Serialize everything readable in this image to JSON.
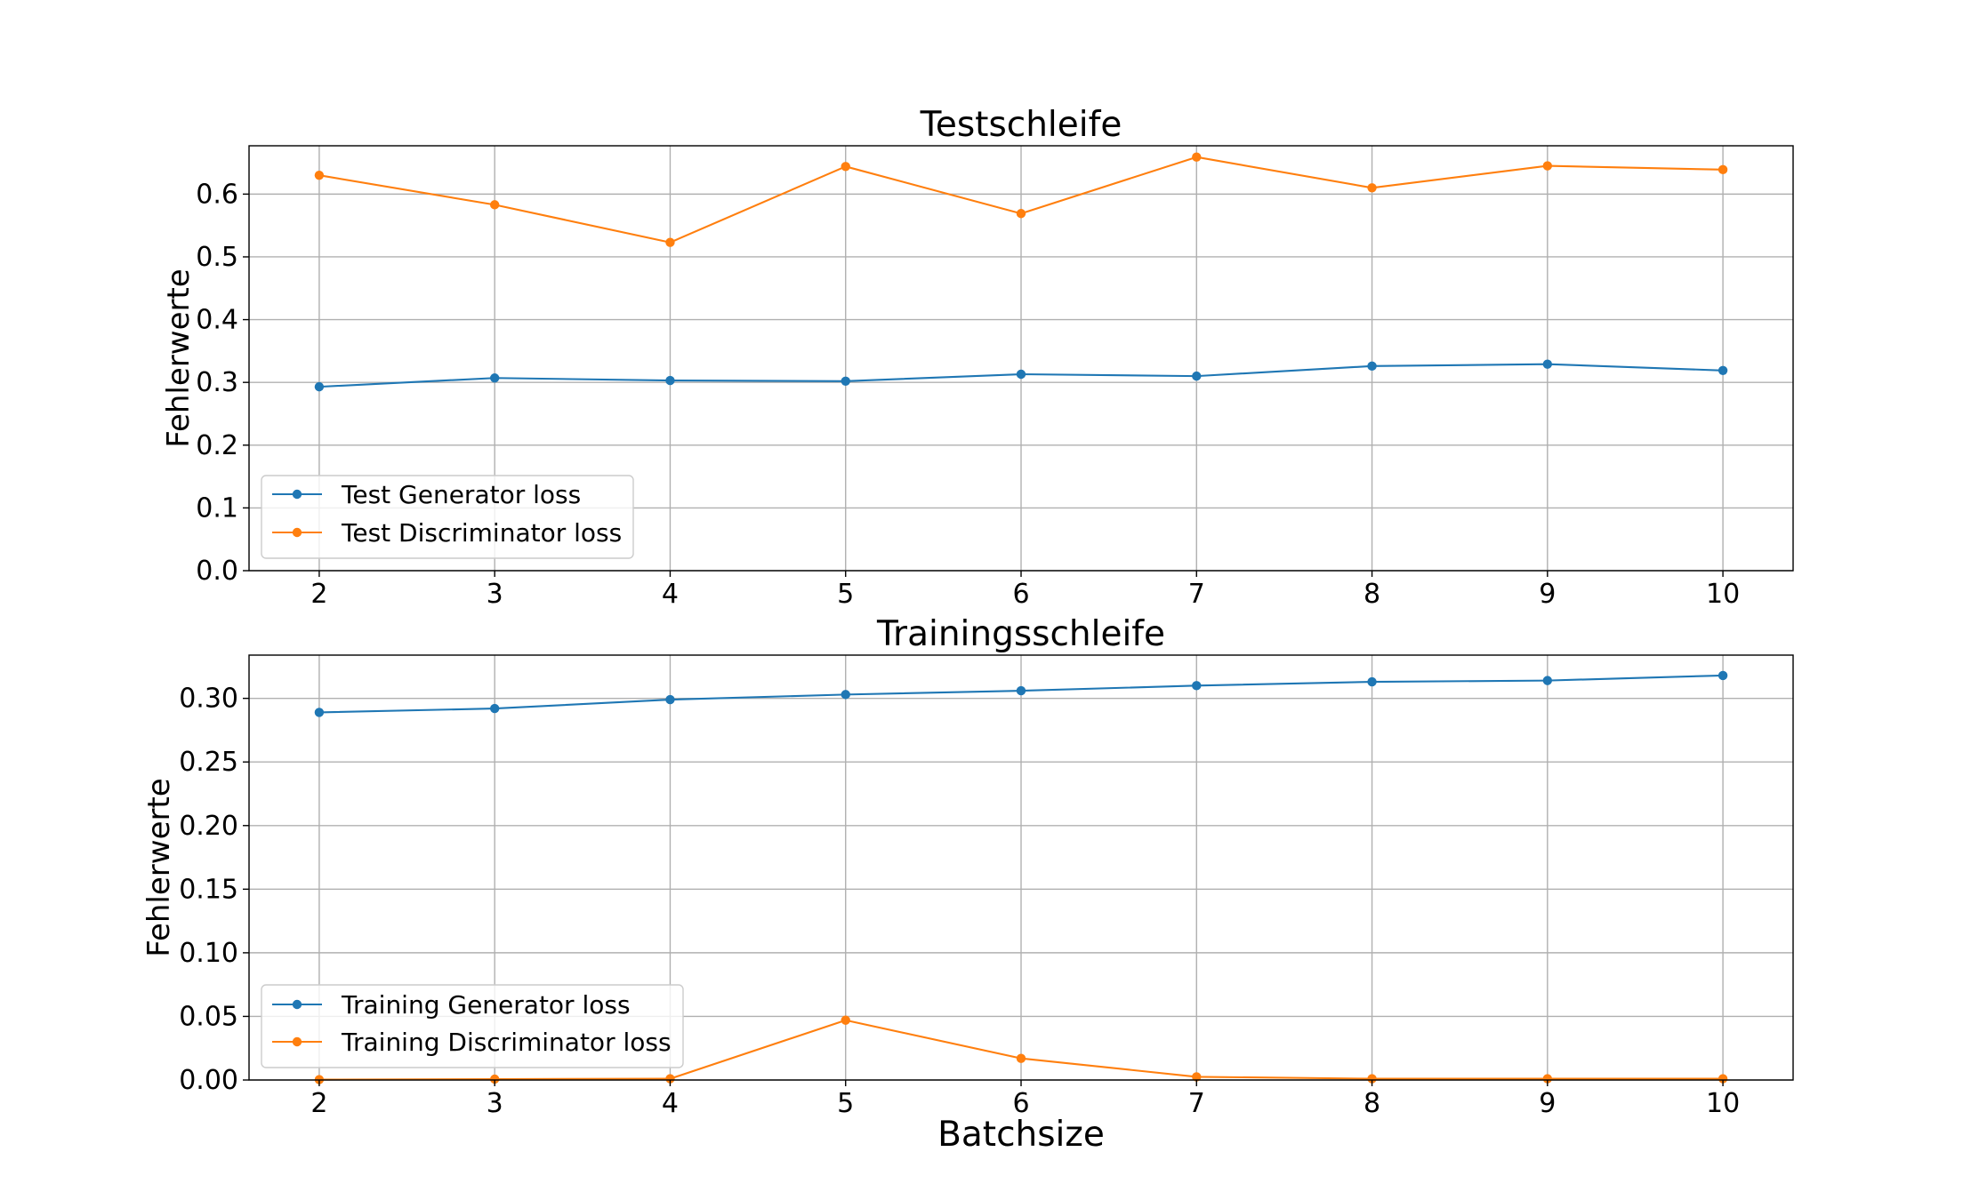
{
  "chart_data": [
    {
      "type": "line",
      "title": "Testschleife",
      "xlabel": "",
      "ylabel": "Fehlerwerte",
      "x": [
        2,
        3,
        4,
        5,
        6,
        7,
        8,
        9,
        10
      ],
      "xticks": [
        "2",
        "3",
        "4",
        "5",
        "6",
        "7",
        "8",
        "9",
        "10"
      ],
      "xlim": [
        1.6,
        10.4
      ],
      "ylim": [
        0,
        0.677
      ],
      "yticks": [
        "0.0",
        "0.1",
        "0.2",
        "0.3",
        "0.4",
        "0.5",
        "0.6"
      ],
      "ytick_values": [
        0,
        0.1,
        0.2,
        0.3,
        0.4,
        0.5,
        0.6
      ],
      "grid": true,
      "legend_position": "lower-left",
      "series": [
        {
          "name": "Test Generator loss",
          "color": "#1f77b4",
          "marker": "circle",
          "values": [
            0.293,
            0.307,
            0.303,
            0.302,
            0.313,
            0.31,
            0.326,
            0.329,
            0.319
          ]
        },
        {
          "name": "Test Discriminator loss",
          "color": "#ff7f0e",
          "marker": "circle",
          "values": [
            0.63,
            0.583,
            0.523,
            0.644,
            0.569,
            0.659,
            0.61,
            0.645,
            0.639
          ]
        }
      ]
    },
    {
      "type": "line",
      "title": "Trainingsschleife",
      "xlabel": "Batchsize",
      "ylabel": "Fehlerwerte",
      "x": [
        2,
        3,
        4,
        5,
        6,
        7,
        8,
        9,
        10
      ],
      "xticks": [
        "2",
        "3",
        "4",
        "5",
        "6",
        "7",
        "8",
        "9",
        "10"
      ],
      "xlim": [
        1.6,
        10.4
      ],
      "ylim": [
        0,
        0.334
      ],
      "yticks": [
        "0.00",
        "0.05",
        "0.10",
        "0.15",
        "0.20",
        "0.25",
        "0.30"
      ],
      "ytick_values": [
        0,
        0.05,
        0.1,
        0.15,
        0.2,
        0.25,
        0.3
      ],
      "grid": true,
      "legend_position": "lower-left",
      "series": [
        {
          "name": "Training Generator loss",
          "color": "#1f77b4",
          "marker": "circle",
          "values": [
            0.289,
            0.292,
            0.299,
            0.303,
            0.306,
            0.31,
            0.313,
            0.314,
            0.318
          ]
        },
        {
          "name": "Training Discriminator loss",
          "color": "#ff7f0e",
          "marker": "circle",
          "values": [
            0.0003,
            0.0007,
            0.001,
            0.047,
            0.017,
            0.0025,
            0.001,
            0.001,
            0.001
          ]
        }
      ]
    }
  ]
}
